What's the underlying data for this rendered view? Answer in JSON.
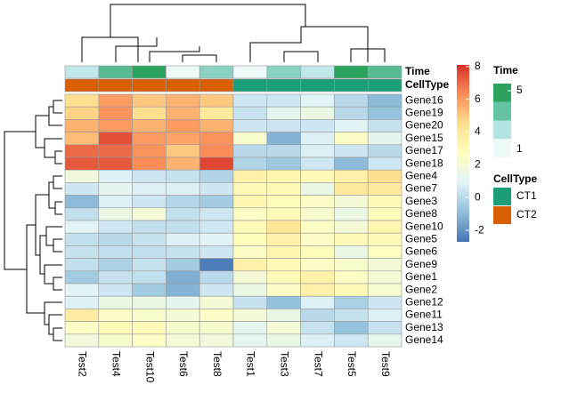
{
  "chart_data": {
    "type": "heatmap",
    "rows": [
      "Gene16",
      "Gene19",
      "Gene20",
      "Gene15",
      "Gene17",
      "Gene18",
      "Gene4",
      "Gene7",
      "Gene3",
      "Gene8",
      "Gene10",
      "Gene5",
      "Gene6",
      "Gene9",
      "Gene1",
      "Gene2",
      "Gene12",
      "Gene11",
      "Gene13",
      "Gene14"
    ],
    "columns": [
      "Test2",
      "Test4",
      "Test10",
      "Test6",
      "Test8",
      "Test1",
      "Test3",
      "Test7",
      "Test5",
      "Test9"
    ],
    "values": [
      [
        4.5,
        6,
        5,
        5.5,
        5,
        0.5,
        0.5,
        1,
        0,
        -1
      ],
      [
        4.8,
        6.2,
        4.5,
        5.5,
        4,
        0.3,
        1.2,
        1.5,
        0,
        -0.8
      ],
      [
        5.5,
        6,
        5.5,
        6,
        5.5,
        0.5,
        0.5,
        0.5,
        1,
        0.3
      ],
      [
        5.3,
        7.5,
        6,
        5.8,
        6.2,
        2.3,
        -1.2,
        0.8,
        2.5,
        1.2
      ],
      [
        7,
        7,
        6.2,
        5,
        6.3,
        0,
        0,
        0.8,
        0.5,
        0
      ],
      [
        7.3,
        7.3,
        6.3,
        5.5,
        7.7,
        -0.2,
        -0.6,
        0.5,
        -1,
        0.5
      ],
      [
        1.8,
        0.8,
        0.5,
        0.3,
        -0.2,
        3.5,
        3.2,
        3,
        3.5,
        4.5
      ],
      [
        0.5,
        1.2,
        0.8,
        0.8,
        0.5,
        3,
        3,
        1.5,
        4,
        4
      ],
      [
        -1,
        0.8,
        0.5,
        -0.1,
        -0.5,
        3.2,
        2.8,
        2.5,
        2,
        3
      ],
      [
        0.2,
        1.5,
        2,
        0.2,
        0.5,
        2.5,
        3,
        2.3,
        1.5,
        2.8
      ],
      [
        1,
        0.5,
        0.2,
        0.2,
        0.5,
        3,
        4.2,
        2.5,
        2,
        3.2
      ],
      [
        0.2,
        0,
        0.3,
        0.8,
        1,
        2.8,
        3.5,
        2.5,
        3,
        3
      ],
      [
        0.3,
        0.2,
        0.2,
        0.3,
        0.5,
        2.5,
        3.2,
        2.8,
        1.5,
        2.7
      ],
      [
        0.2,
        -0.3,
        0.3,
        -0.5,
        -2.5,
        3.5,
        3,
        2.5,
        2.3,
        2
      ],
      [
        -0.5,
        0.3,
        0.2,
        -1.3,
        0,
        2,
        3,
        3.5,
        2.5,
        2
      ],
      [
        1,
        0.5,
        -0.5,
        -1.2,
        0.5,
        1.5,
        2.5,
        3.5,
        3,
        2.2
      ],
      [
        0.8,
        1.5,
        1.5,
        1.2,
        2,
        0.3,
        -0.8,
        0.8,
        -0.3,
        0.5
      ],
      [
        3.8,
        2.5,
        2.3,
        2,
        2.5,
        2,
        1.5,
        0,
        0.3,
        0.8
      ],
      [
        2.5,
        3,
        3,
        2.3,
        2.3,
        1.2,
        2,
        0.3,
        -0.8,
        0.3
      ],
      [
        1.8,
        2.3,
        2.5,
        2,
        1.8,
        1.2,
        1.5,
        0.8,
        0.5,
        1.3
      ]
    ],
    "colors": [
      "#4575b4",
      "#91bfdb",
      "#e0f3f8",
      "#ffffbf",
      "#fee090",
      "#fc8d59",
      "#d73027"
    ],
    "zlim": [
      -2.7,
      8.1
    ],
    "zticks": [
      -2,
      0,
      2,
      4,
      6,
      8
    ],
    "annotations": [
      {
        "name": "Time",
        "values": [
          2,
          4,
          5,
          1,
          3,
          1,
          3,
          2,
          5,
          4
        ],
        "lim": [
          1,
          5
        ],
        "ticks": [
          1,
          5
        ],
        "colors": [
          "#edf8f9",
          "#b2e2e2",
          "#66c2a4",
          "#2ca25f"
        ]
      },
      {
        "name": "CellType",
        "values": [
          "CT2",
          "CT2",
          "CT2",
          "CT2",
          "CT2",
          "CT1",
          "CT1",
          "CT1",
          "CT1",
          "CT1"
        ],
        "levels": [
          {
            "name": "CT1",
            "color": "#1b9e77"
          },
          {
            "name": "CT2",
            "color": "#d95f02"
          }
        ]
      }
    ]
  }
}
